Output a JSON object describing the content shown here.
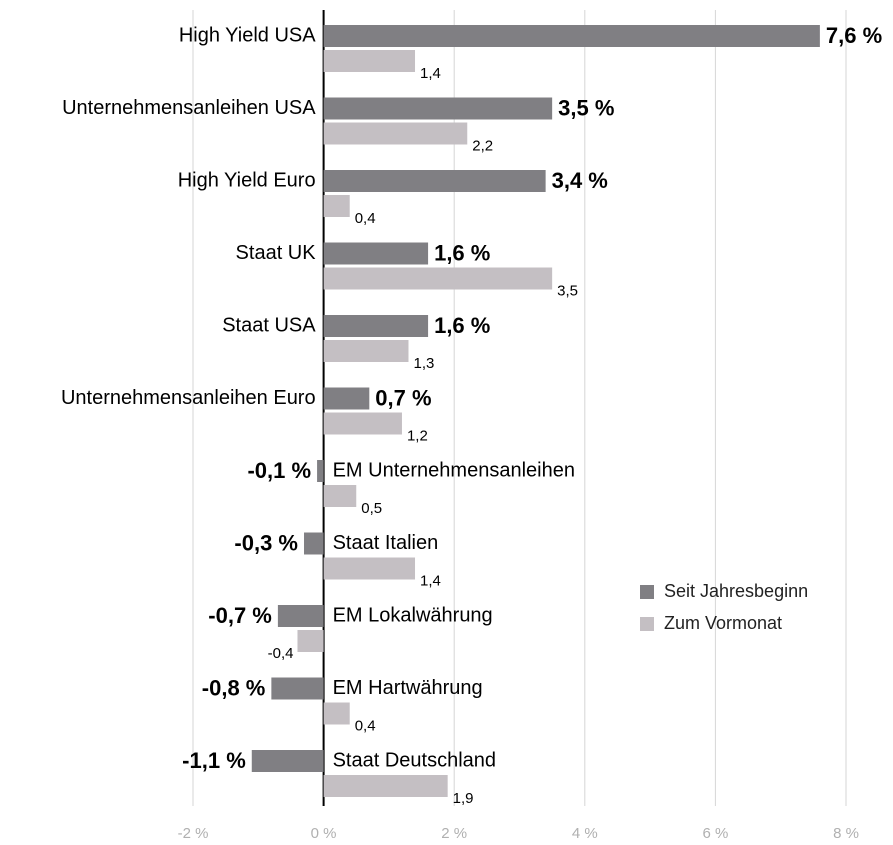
{
  "chart_data": {
    "type": "bar",
    "orientation": "horizontal",
    "categories": [
      "High Yield USA",
      "Unternehmensanleihen USA",
      "High Yield Euro",
      "Staat UK",
      "Staat USA",
      "Unternehmensanleihen Euro",
      "EM Unternehmensanleihen",
      "Staat Italien",
      "EM Lokalwährung",
      "EM Hartwährung",
      "Staat Deutschland"
    ],
    "series": [
      {
        "name": "Seit Jahresbeginn",
        "color": "#807f83",
        "values": [
          7.6,
          3.5,
          3.4,
          1.6,
          1.6,
          0.7,
          -0.1,
          -0.3,
          -0.7,
          -0.8,
          -1.1
        ],
        "value_labels": [
          "7,6 %",
          "3,5 %",
          "3,4 %",
          "1,6 %",
          "1,6 %",
          "0,7 %",
          "-0,1 %",
          "-0,3 %",
          "-0,7 %",
          "-0,8 %",
          "-1,1 %"
        ]
      },
      {
        "name": "Zum Vormonat",
        "color": "#c4bfc3",
        "values": [
          1.4,
          2.2,
          0.4,
          3.5,
          1.3,
          1.2,
          0.5,
          1.4,
          -0.4,
          0.4,
          1.9
        ],
        "value_labels": [
          "1,4",
          "2,2",
          "0,4",
          "3,5",
          "1,3",
          "1,2",
          "0,5",
          "1,4",
          "-0,4",
          "0,4",
          "1,9"
        ]
      }
    ],
    "xlim": [
      -2,
      8
    ],
    "xticks": [
      {
        "value": -2,
        "label": "-2 %"
      },
      {
        "value": 0,
        "label": "0 %"
      },
      {
        "value": 2,
        "label": "2 %"
      },
      {
        "value": 4,
        "label": "4 %"
      },
      {
        "value": 6,
        "label": "6 %"
      },
      {
        "value": 8,
        "label": "8 %"
      }
    ],
    "grid": true,
    "legend": "right"
  }
}
